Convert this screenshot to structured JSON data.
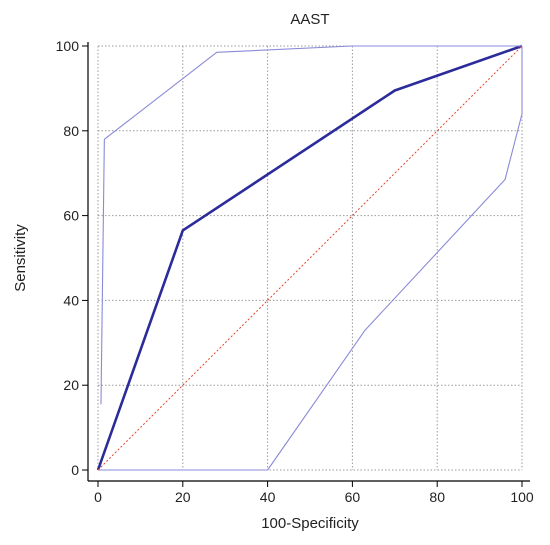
{
  "chart_data": {
    "type": "line",
    "title": "AAST",
    "xlabel": "100-Specificity",
    "ylabel": "Sensitivity",
    "xlim": [
      0,
      100
    ],
    "ylim": [
      0,
      100
    ],
    "x_ticks": [
      0,
      20,
      40,
      60,
      80,
      100
    ],
    "y_ticks": [
      0,
      20,
      40,
      60,
      80,
      100
    ],
    "grid": true,
    "series": [
      {
        "role": "roc",
        "color": "#2b2b9a",
        "points": [
          [
            0,
            0
          ],
          [
            20,
            56.5
          ],
          [
            70,
            89.5
          ],
          [
            100,
            100
          ]
        ]
      },
      {
        "role": "upper-confidence-bound",
        "color": "#8a8ad8",
        "points": [
          [
            0.7,
            15.5
          ],
          [
            1.5,
            78
          ],
          [
            28,
            98.5
          ],
          [
            60,
            100
          ],
          [
            100,
            100
          ]
        ]
      },
      {
        "role": "lower-confidence-bound",
        "color": "#8a8ad8",
        "points": [
          [
            0,
            0
          ],
          [
            40,
            0
          ],
          [
            63,
            33
          ],
          [
            96,
            68.5
          ],
          [
            100,
            84
          ],
          [
            100,
            100
          ]
        ]
      },
      {
        "role": "diagonal-reference",
        "color": "#e0472f",
        "points": [
          [
            0,
            0
          ],
          [
            100,
            100
          ]
        ]
      }
    ]
  }
}
